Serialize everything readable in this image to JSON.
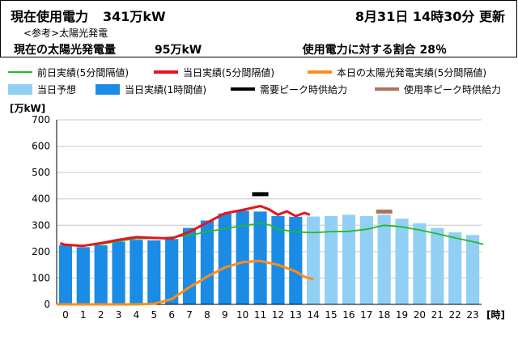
{
  "header": {
    "usage_title": "現在使用電力",
    "usage_value": "341万kW",
    "update_time": "8月31日 14時30分 更新",
    "ref_label": "<参考>太陽光発電",
    "solar_title": "現在の太陽光発電量",
    "solar_value": "95万kW",
    "ratio_label": "使用電力に対する割合 28％"
  },
  "legend": [
    {
      "label": "前日実績(5分間隔値)",
      "kind": "line",
      "color": "#22bb22"
    },
    {
      "label": "当日実績(5分間隔値)",
      "kind": "line",
      "color": "#e8141e"
    },
    {
      "label": "本日の太陽光発電実績(5分間隔値)",
      "kind": "line",
      "color": "#ff8c1a"
    },
    {
      "label": "当日予想",
      "kind": "box",
      "color": "#92cff5"
    },
    {
      "label": "当日実績(1時間値)",
      "kind": "box",
      "color": "#1a8ce6"
    },
    {
      "label": "需要ピーク時供給力",
      "kind": "line",
      "color": "#000000"
    },
    {
      "label": "使用率ピーク時供給力",
      "kind": "line",
      "color": "#b0745a"
    }
  ],
  "chart_data": {
    "type": "bar",
    "ylabel": "[万kW]",
    "xlabel": "[時]",
    "ylim": [
      0,
      700
    ],
    "yticks": [
      0,
      100,
      200,
      300,
      400,
      500,
      600,
      700
    ],
    "categories": [
      "0",
      "1",
      "2",
      "3",
      "4",
      "5",
      "6",
      "7",
      "8",
      "9",
      "10",
      "11",
      "12",
      "13",
      "14",
      "15",
      "16",
      "17",
      "18",
      "19",
      "20",
      "21",
      "22",
      "23"
    ],
    "grid": true,
    "series": [
      {
        "name": "当日実績(1時間値)",
        "color": "#1a8ce6",
        "values": [
          225,
          217,
          224,
          238,
          245,
          243,
          248,
          290,
          318,
          345,
          355,
          352,
          335,
          332,
          null,
          null,
          null,
          null,
          null,
          null,
          null,
          null,
          null,
          null
        ]
      },
      {
        "name": "当日予想",
        "color": "#92cff5",
        "values": [
          null,
          null,
          null,
          null,
          null,
          null,
          null,
          null,
          null,
          null,
          null,
          null,
          null,
          null,
          333,
          335,
          340,
          335,
          340,
          325,
          308,
          290,
          273,
          263
        ]
      },
      {
        "name": "前日実績(5分間隔値)",
        "color": "#22bb22",
        "points": [
          [
            0,
            228
          ],
          [
            1,
            223
          ],
          [
            2,
            228
          ],
          [
            3,
            240
          ],
          [
            4,
            250
          ],
          [
            5,
            250
          ],
          [
            6,
            255
          ],
          [
            7,
            262
          ],
          [
            8,
            275
          ],
          [
            9,
            287
          ],
          [
            10,
            298
          ],
          [
            11,
            307
          ],
          [
            11.5,
            302
          ],
          [
            12,
            285
          ],
          [
            13,
            275
          ],
          [
            14,
            272
          ],
          [
            15,
            276
          ],
          [
            16,
            277
          ],
          [
            17,
            285
          ],
          [
            18,
            300
          ],
          [
            19,
            294
          ],
          [
            20,
            282
          ],
          [
            21,
            268
          ],
          [
            22,
            252
          ],
          [
            23,
            238
          ],
          [
            23.6,
            228
          ]
        ]
      },
      {
        "name": "当日実績(5分間隔値)",
        "color": "#e8141e",
        "points": [
          [
            -0.3,
            232
          ],
          [
            0,
            226
          ],
          [
            1,
            222
          ],
          [
            2,
            232
          ],
          [
            3,
            245
          ],
          [
            4,
            255
          ],
          [
            5,
            252
          ],
          [
            6,
            250
          ],
          [
            7,
            275
          ],
          [
            8,
            310
          ],
          [
            9,
            345
          ],
          [
            10,
            358
          ],
          [
            11,
            373
          ],
          [
            11.5,
            360
          ],
          [
            12,
            340
          ],
          [
            12.5,
            353
          ],
          [
            13,
            335
          ],
          [
            13.5,
            347
          ],
          [
            13.8,
            340
          ]
        ]
      },
      {
        "name": "本日の太陽光発電実績(5分間隔値)",
        "color": "#ff8c1a",
        "points": [
          [
            -0.5,
            0
          ],
          [
            4,
            0
          ],
          [
            5,
            2
          ],
          [
            6,
            20
          ],
          [
            7,
            65
          ],
          [
            8,
            105
          ],
          [
            9,
            140
          ],
          [
            10,
            160
          ],
          [
            11,
            165
          ],
          [
            12,
            150
          ],
          [
            13,
            125
          ],
          [
            13.5,
            105
          ],
          [
            14,
            95
          ]
        ]
      },
      {
        "name": "需要ピーク時供給力",
        "color": "#000000",
        "points": [
          [
            11,
            418
          ]
        ]
      },
      {
        "name": "使用率ピーク時供給力",
        "color": "#b0745a",
        "points": [
          [
            18,
            352
          ]
        ]
      }
    ]
  }
}
